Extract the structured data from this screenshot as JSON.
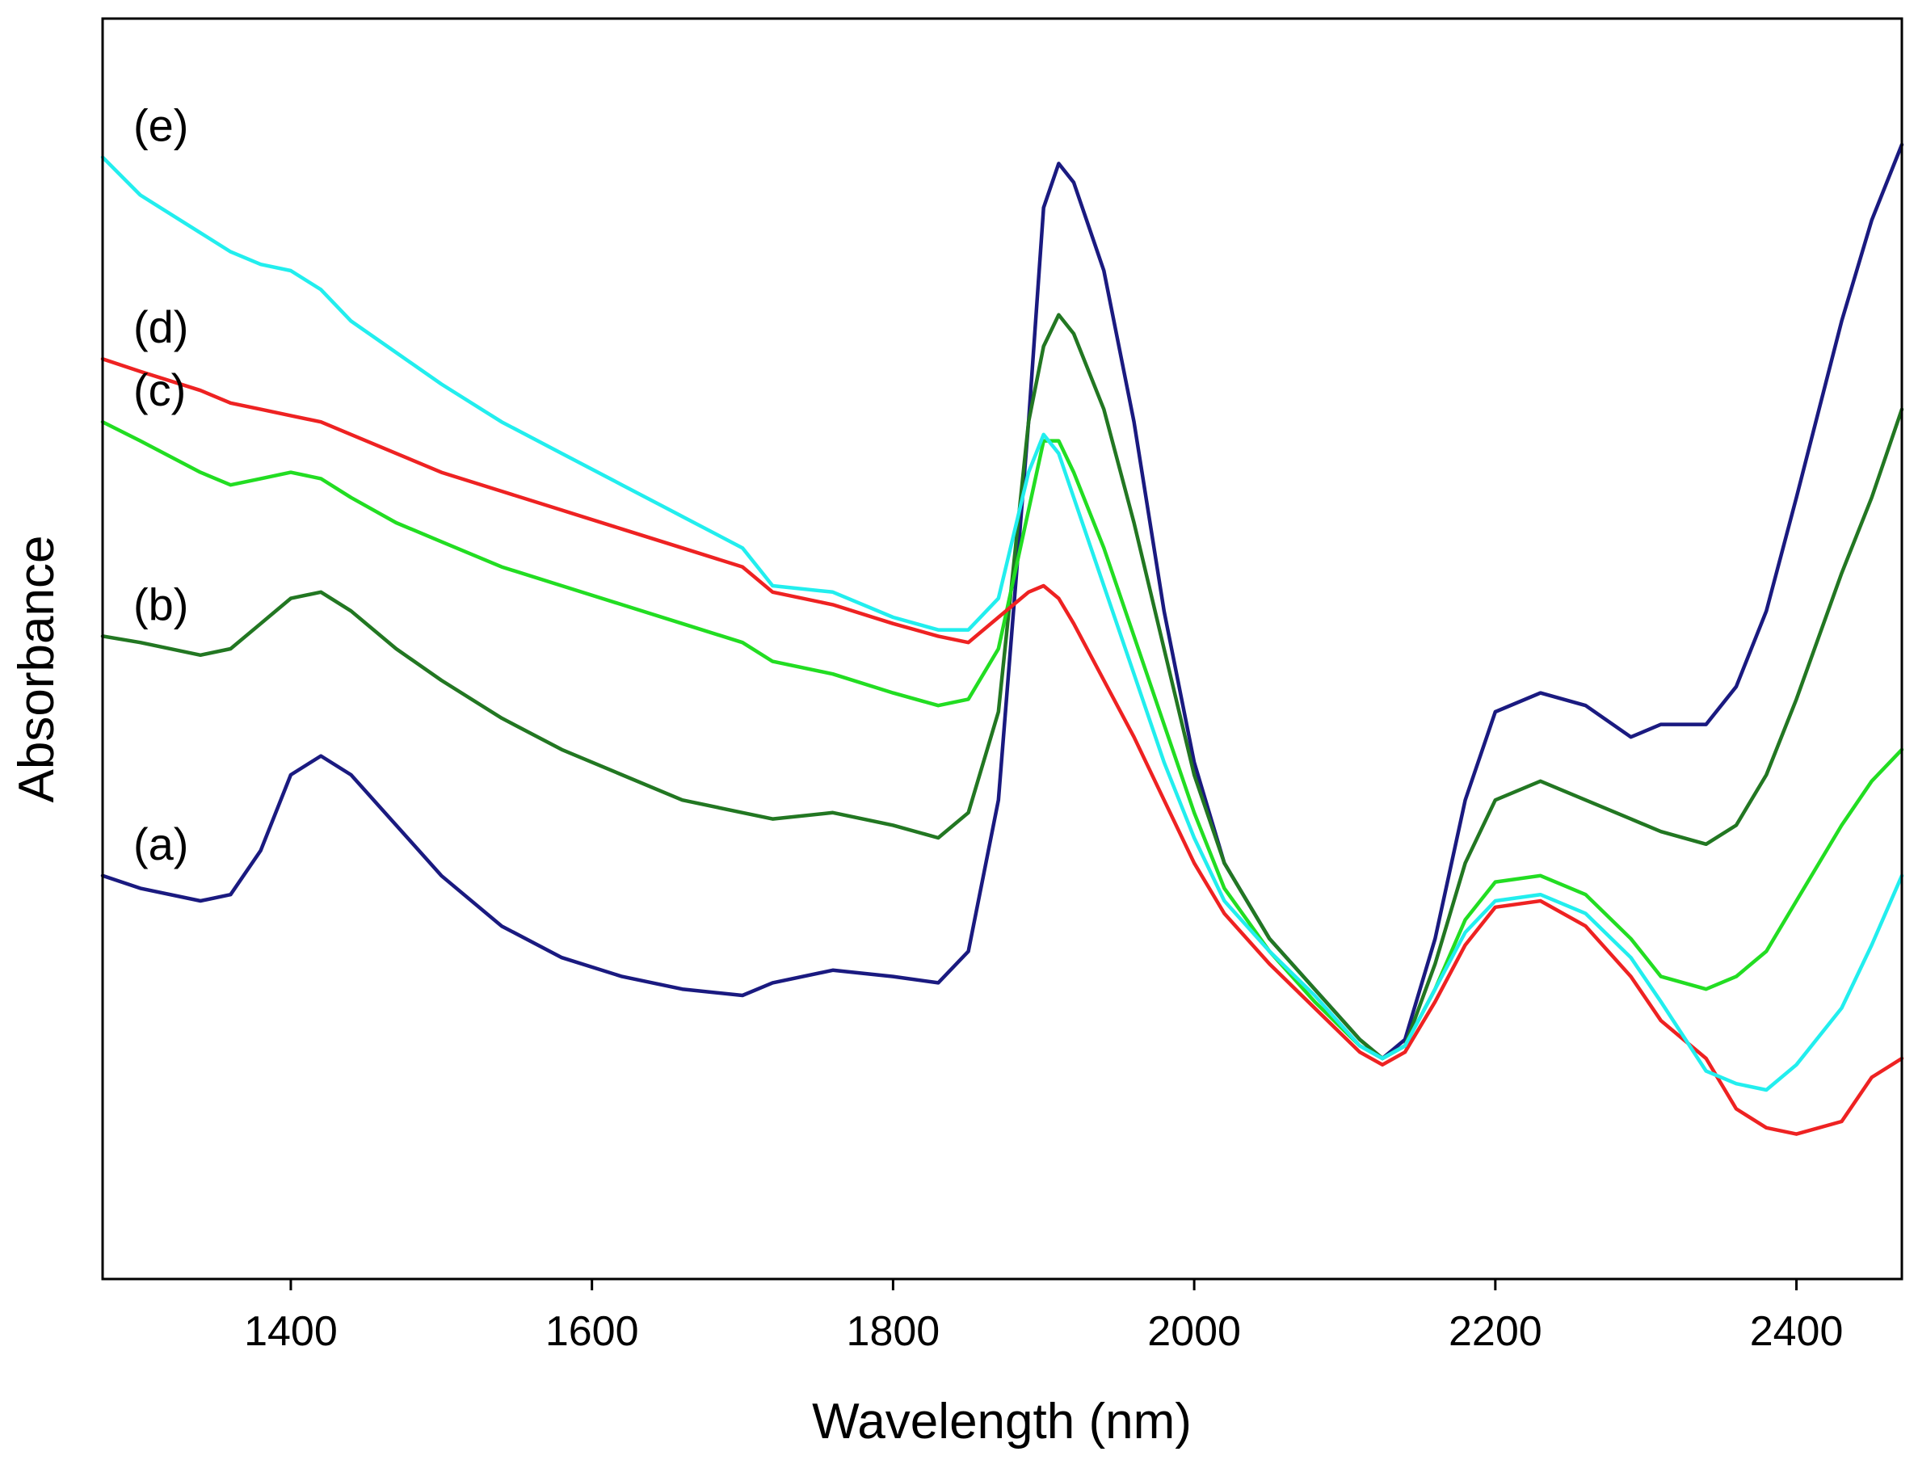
{
  "chart_data": {
    "type": "line",
    "title": "",
    "xlabel": "Wavelength (nm)",
    "ylabel": "Absorbance",
    "xlim": [
      1275,
      2470
    ],
    "ylim": [
      0,
      1
    ],
    "x_ticks": [
      1400,
      1600,
      1800,
      2000,
      2200,
      2400
    ],
    "grid": false,
    "series": [
      {
        "name": "(a)",
        "color": "#1a1a80",
        "points": [
          [
            1275,
            0.32
          ],
          [
            1300,
            0.31
          ],
          [
            1340,
            0.3
          ],
          [
            1360,
            0.305
          ],
          [
            1380,
            0.34
          ],
          [
            1400,
            0.4
          ],
          [
            1420,
            0.415
          ],
          [
            1440,
            0.4
          ],
          [
            1470,
            0.36
          ],
          [
            1500,
            0.32
          ],
          [
            1540,
            0.28
          ],
          [
            1580,
            0.255
          ],
          [
            1620,
            0.24
          ],
          [
            1660,
            0.23
          ],
          [
            1700,
            0.225
          ],
          [
            1720,
            0.235
          ],
          [
            1760,
            0.245
          ],
          [
            1800,
            0.24
          ],
          [
            1830,
            0.235
          ],
          [
            1850,
            0.26
          ],
          [
            1870,
            0.38
          ],
          [
            1890,
            0.68
          ],
          [
            1900,
            0.85
          ],
          [
            1910,
            0.885
          ],
          [
            1920,
            0.87
          ],
          [
            1940,
            0.8
          ],
          [
            1960,
            0.68
          ],
          [
            1980,
            0.53
          ],
          [
            2000,
            0.41
          ],
          [
            2020,
            0.33
          ],
          [
            2050,
            0.27
          ],
          [
            2080,
            0.23
          ],
          [
            2110,
            0.19
          ],
          [
            2125,
            0.175
          ],
          [
            2140,
            0.19
          ],
          [
            2160,
            0.27
          ],
          [
            2180,
            0.38
          ],
          [
            2200,
            0.45
          ],
          [
            2230,
            0.465
          ],
          [
            2260,
            0.455
          ],
          [
            2290,
            0.43
          ],
          [
            2310,
            0.44
          ],
          [
            2340,
            0.44
          ],
          [
            2360,
            0.47
          ],
          [
            2380,
            0.53
          ],
          [
            2400,
            0.62
          ],
          [
            2430,
            0.76
          ],
          [
            2450,
            0.84
          ],
          [
            2470,
            0.9
          ]
        ]
      },
      {
        "name": "(b)",
        "color": "#227722",
        "points": [
          [
            1275,
            0.51
          ],
          [
            1300,
            0.505
          ],
          [
            1340,
            0.495
          ],
          [
            1360,
            0.5
          ],
          [
            1380,
            0.52
          ],
          [
            1400,
            0.54
          ],
          [
            1420,
            0.545
          ],
          [
            1440,
            0.53
          ],
          [
            1470,
            0.5
          ],
          [
            1500,
            0.475
          ],
          [
            1540,
            0.445
          ],
          [
            1580,
            0.42
          ],
          [
            1620,
            0.4
          ],
          [
            1660,
            0.38
          ],
          [
            1700,
            0.37
          ],
          [
            1720,
            0.365
          ],
          [
            1760,
            0.37
          ],
          [
            1800,
            0.36
          ],
          [
            1830,
            0.35
          ],
          [
            1850,
            0.37
          ],
          [
            1870,
            0.45
          ],
          [
            1890,
            0.68
          ],
          [
            1900,
            0.74
          ],
          [
            1910,
            0.765
          ],
          [
            1920,
            0.75
          ],
          [
            1940,
            0.69
          ],
          [
            1960,
            0.6
          ],
          [
            1980,
            0.5
          ],
          [
            2000,
            0.4
          ],
          [
            2020,
            0.33
          ],
          [
            2050,
            0.27
          ],
          [
            2080,
            0.23
          ],
          [
            2110,
            0.19
          ],
          [
            2125,
            0.175
          ],
          [
            2140,
            0.185
          ],
          [
            2160,
            0.25
          ],
          [
            2180,
            0.33
          ],
          [
            2200,
            0.38
          ],
          [
            2230,
            0.395
          ],
          [
            2260,
            0.38
          ],
          [
            2290,
            0.365
          ],
          [
            2310,
            0.355
          ],
          [
            2340,
            0.345
          ],
          [
            2360,
            0.36
          ],
          [
            2380,
            0.4
          ],
          [
            2400,
            0.46
          ],
          [
            2430,
            0.56
          ],
          [
            2450,
            0.62
          ],
          [
            2470,
            0.69
          ]
        ]
      },
      {
        "name": "(c)",
        "color": "#22dd22",
        "points": [
          [
            1275,
            0.68
          ],
          [
            1300,
            0.665
          ],
          [
            1340,
            0.64
          ],
          [
            1360,
            0.63
          ],
          [
            1380,
            0.635
          ],
          [
            1400,
            0.64
          ],
          [
            1420,
            0.635
          ],
          [
            1440,
            0.62
          ],
          [
            1470,
            0.6
          ],
          [
            1500,
            0.585
          ],
          [
            1540,
            0.565
          ],
          [
            1580,
            0.55
          ],
          [
            1620,
            0.535
          ],
          [
            1660,
            0.52
          ],
          [
            1700,
            0.505
          ],
          [
            1720,
            0.49
          ],
          [
            1760,
            0.48
          ],
          [
            1800,
            0.465
          ],
          [
            1830,
            0.455
          ],
          [
            1850,
            0.46
          ],
          [
            1870,
            0.5
          ],
          [
            1890,
            0.61
          ],
          [
            1900,
            0.665
          ],
          [
            1910,
            0.665
          ],
          [
            1920,
            0.64
          ],
          [
            1940,
            0.58
          ],
          [
            1960,
            0.51
          ],
          [
            1980,
            0.44
          ],
          [
            2000,
            0.37
          ],
          [
            2020,
            0.31
          ],
          [
            2050,
            0.26
          ],
          [
            2080,
            0.22
          ],
          [
            2110,
            0.185
          ],
          [
            2125,
            0.175
          ],
          [
            2140,
            0.185
          ],
          [
            2160,
            0.23
          ],
          [
            2180,
            0.285
          ],
          [
            2200,
            0.315
          ],
          [
            2230,
            0.32
          ],
          [
            2260,
            0.305
          ],
          [
            2290,
            0.27
          ],
          [
            2310,
            0.24
          ],
          [
            2340,
            0.23
          ],
          [
            2360,
            0.24
          ],
          [
            2380,
            0.26
          ],
          [
            2400,
            0.3
          ],
          [
            2430,
            0.36
          ],
          [
            2450,
            0.395
          ],
          [
            2470,
            0.42
          ]
        ]
      },
      {
        "name": "(d)",
        "color": "#ee2222",
        "points": [
          [
            1275,
            0.73
          ],
          [
            1300,
            0.72
          ],
          [
            1340,
            0.705
          ],
          [
            1360,
            0.695
          ],
          [
            1380,
            0.69
          ],
          [
            1400,
            0.685
          ],
          [
            1420,
            0.68
          ],
          [
            1440,
            0.67
          ],
          [
            1470,
            0.655
          ],
          [
            1500,
            0.64
          ],
          [
            1540,
            0.625
          ],
          [
            1580,
            0.61
          ],
          [
            1620,
            0.595
          ],
          [
            1660,
            0.58
          ],
          [
            1700,
            0.565
          ],
          [
            1720,
            0.545
          ],
          [
            1760,
            0.535
          ],
          [
            1800,
            0.52
          ],
          [
            1830,
            0.51
          ],
          [
            1850,
            0.505
          ],
          [
            1870,
            0.525
          ],
          [
            1890,
            0.545
          ],
          [
            1900,
            0.55
          ],
          [
            1910,
            0.54
          ],
          [
            1920,
            0.52
          ],
          [
            1940,
            0.475
          ],
          [
            1960,
            0.43
          ],
          [
            1980,
            0.38
          ],
          [
            2000,
            0.33
          ],
          [
            2020,
            0.29
          ],
          [
            2050,
            0.25
          ],
          [
            2080,
            0.215
          ],
          [
            2110,
            0.18
          ],
          [
            2125,
            0.17
          ],
          [
            2140,
            0.18
          ],
          [
            2160,
            0.22
          ],
          [
            2180,
            0.265
          ],
          [
            2200,
            0.295
          ],
          [
            2230,
            0.3
          ],
          [
            2260,
            0.28
          ],
          [
            2290,
            0.24
          ],
          [
            2310,
            0.205
          ],
          [
            2340,
            0.175
          ],
          [
            2360,
            0.135
          ],
          [
            2380,
            0.12
          ],
          [
            2400,
            0.115
          ],
          [
            2430,
            0.125
          ],
          [
            2450,
            0.16
          ],
          [
            2470,
            0.175
          ]
        ]
      },
      {
        "name": "(e)",
        "color": "#22eeee",
        "points": [
          [
            1275,
            0.89
          ],
          [
            1300,
            0.86
          ],
          [
            1340,
            0.83
          ],
          [
            1360,
            0.815
          ],
          [
            1380,
            0.805
          ],
          [
            1400,
            0.8
          ],
          [
            1420,
            0.785
          ],
          [
            1440,
            0.76
          ],
          [
            1470,
            0.735
          ],
          [
            1500,
            0.71
          ],
          [
            1540,
            0.68
          ],
          [
            1580,
            0.655
          ],
          [
            1620,
            0.63
          ],
          [
            1660,
            0.605
          ],
          [
            1700,
            0.58
          ],
          [
            1720,
            0.55
          ],
          [
            1760,
            0.545
          ],
          [
            1800,
            0.525
          ],
          [
            1830,
            0.515
          ],
          [
            1850,
            0.515
          ],
          [
            1870,
            0.54
          ],
          [
            1890,
            0.64
          ],
          [
            1900,
            0.67
          ],
          [
            1910,
            0.655
          ],
          [
            1920,
            0.62
          ],
          [
            1940,
            0.55
          ],
          [
            1960,
            0.48
          ],
          [
            1980,
            0.41
          ],
          [
            2000,
            0.35
          ],
          [
            2020,
            0.3
          ],
          [
            2050,
            0.26
          ],
          [
            2080,
            0.225
          ],
          [
            2110,
            0.185
          ],
          [
            2125,
            0.175
          ],
          [
            2140,
            0.185
          ],
          [
            2160,
            0.23
          ],
          [
            2180,
            0.275
          ],
          [
            2200,
            0.3
          ],
          [
            2230,
            0.305
          ],
          [
            2260,
            0.29
          ],
          [
            2290,
            0.255
          ],
          [
            2310,
            0.22
          ],
          [
            2340,
            0.165
          ],
          [
            2360,
            0.155
          ],
          [
            2380,
            0.15
          ],
          [
            2400,
            0.17
          ],
          [
            2430,
            0.215
          ],
          [
            2450,
            0.265
          ],
          [
            2470,
            0.32
          ]
        ]
      }
    ]
  }
}
